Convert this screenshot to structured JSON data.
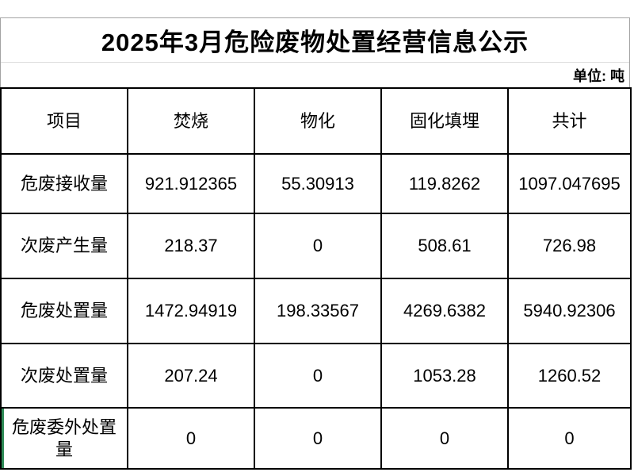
{
  "title": "2025年3月危险废物处置经营信息公示",
  "unit_label": "单位: 吨",
  "table": {
    "columns": [
      "项目",
      "焚烧",
      "物化",
      "固化填埋",
      "共计"
    ],
    "rows": [
      {
        "label": "危废接收量",
        "values": [
          "921.912365",
          "55.30913",
          "119.8262",
          "1097.047695"
        ]
      },
      {
        "label": "次废产生量",
        "values": [
          "218.37",
          "0",
          "508.61",
          "726.98"
        ]
      },
      {
        "label": "危废处置量",
        "values": [
          "1472.94919",
          "198.33567",
          "4269.6382",
          "5940.92306"
        ]
      },
      {
        "label": "次废处置量",
        "values": [
          "207.24",
          "0",
          "1053.28",
          "1260.52"
        ]
      },
      {
        "label": "危废委外处置量",
        "values": [
          "0",
          "0",
          "0",
          "0"
        ]
      }
    ]
  }
}
